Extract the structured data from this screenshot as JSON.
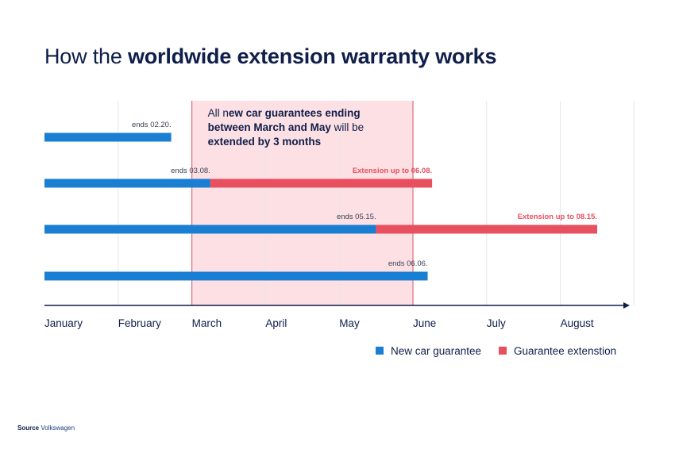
{
  "title": {
    "prefix": "How the ",
    "bold": "worldwide extension warranty works"
  },
  "source": {
    "label": "Source",
    "value": "Volkswagen"
  },
  "colors": {
    "guarantee": "#1a7fd2",
    "extension": "#e8505f",
    "highlight": "#fde0e3",
    "highlight_border": "#e06b78",
    "text": "#0f1e4a",
    "grid": "#e6e6ea"
  },
  "chart_data": {
    "type": "bar",
    "orientation": "horizontal-timeline",
    "months": [
      "January",
      "February",
      "March",
      "April",
      "May",
      "June",
      "July",
      "August"
    ],
    "highlight": {
      "start": "March",
      "end": "May",
      "note_parts": [
        {
          "text": "All n",
          "bold": false
        },
        {
          "text": "ew car guarantees ending",
          "bold": true
        },
        {
          "text": "between March and May",
          "bold": true
        },
        {
          "text": " will be",
          "bold": false
        },
        {
          "text": "extended by 3 months",
          "bold": true
        }
      ]
    },
    "rows": [
      {
        "guarantee_end": 1.72,
        "label": "ends 02.20.",
        "extension_end": null,
        "extension_label": ""
      },
      {
        "guarantee_end": 2.25,
        "label": "ends 03.08.",
        "extension_end": 5.26,
        "extension_label": "Extension up to 06.08."
      },
      {
        "guarantee_end": 4.5,
        "label": "ends 05.15.",
        "extension_end": 7.5,
        "extension_label": "Extension up to 08.15."
      },
      {
        "guarantee_end": 5.2,
        "label": "ends 06.06.",
        "extension_end": null,
        "extension_label": ""
      }
    ],
    "legend": [
      {
        "name": "New car guarantee",
        "color": "#1a7fd2"
      },
      {
        "name": "Guarantee extenstion",
        "color": "#e8505f"
      }
    ],
    "legend_position": "bottom-right",
    "grid": true
  }
}
